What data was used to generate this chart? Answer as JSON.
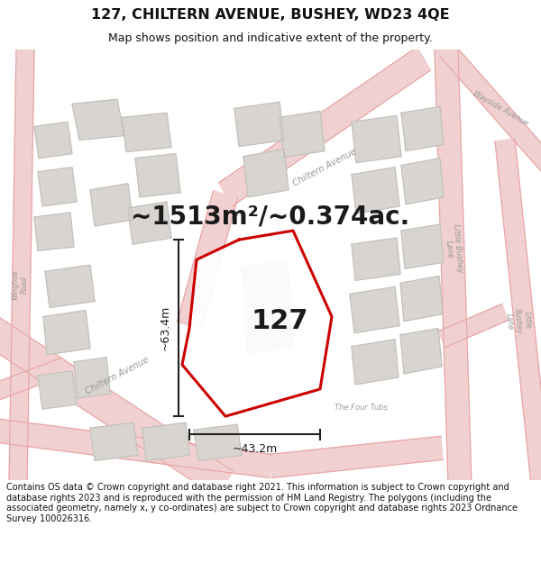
{
  "title": "127, CHILTERN AVENUE, BUSHEY, WD23 4QE",
  "subtitle": "Map shows position and indicative extent of the property.",
  "area_text": "~1513m²/~0.374ac.",
  "label_127": "127",
  "dim_width": "~43.2m",
  "dim_height": "~63.4m",
  "footer": "Contains OS data © Crown copyright and database right 2021. This information is subject to Crown copyright and database rights 2023 and is reproduced with the permission of HM Land Registry. The polygons (including the associated geometry, namely x, y co-ordinates) are subject to Crown copyright and database rights 2023 Ordnance Survey 100026316.",
  "bg_color": "#ffffff",
  "map_bg": "#f2f0ee",
  "road_fill": "#f0d0d0",
  "road_edge": "#e8a0a0",
  "block_fill": "#d8d4d0",
  "block_edge": "#c0bcb8",
  "prop_fill": "#ffffff",
  "prop_stroke": "#cc0000",
  "dim_color": "#222222",
  "title_color": "#111111",
  "title_fontsize": 11.5,
  "subtitle_fontsize": 9,
  "area_fontsize": 20,
  "label_fontsize": 22,
  "dim_fontsize": 9,
  "footer_fontsize": 7
}
